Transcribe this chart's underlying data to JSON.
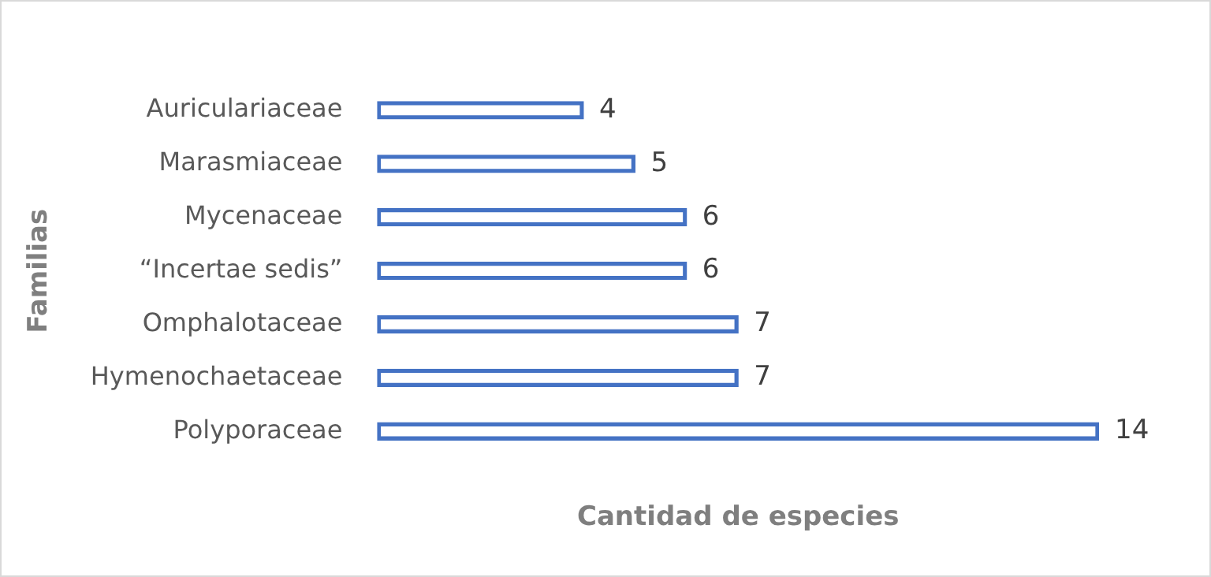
{
  "chart_data": {
    "type": "bar",
    "orientation": "horizontal",
    "categories": [
      "Auriculariaceae",
      "Marasmiaceae",
      "Mycenaceae",
      "“Incertae sedis”",
      "Omphalotaceae",
      "Hymenochaetaceae",
      "Polyporaceae"
    ],
    "values": [
      4,
      5,
      6,
      6,
      7,
      7,
      14
    ],
    "color": "#4472c4",
    "xlabel": "Cantidad de especies",
    "ylabel": "Familias",
    "data_labels": true,
    "grid": false,
    "legend": false
  }
}
